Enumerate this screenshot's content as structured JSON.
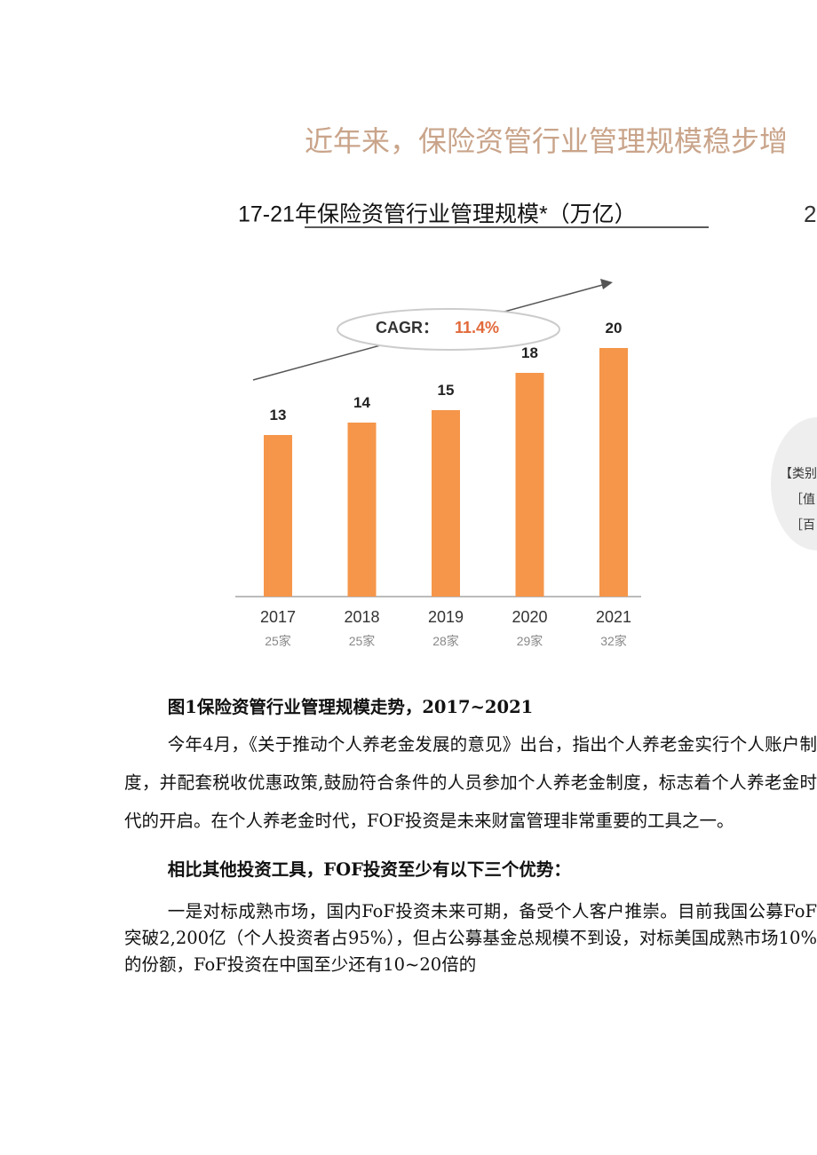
{
  "header": {
    "title": "近年来，保险资管行业管理规模稳步增"
  },
  "chart_data": {
    "type": "bar",
    "title": "17-21年保险资管行业管理规模*（万亿）",
    "annotation": {
      "label": "CAGR：",
      "value": "11.4%"
    },
    "categories": [
      "2017",
      "2018",
      "2019",
      "2020",
      "2021"
    ],
    "values": [
      13,
      14,
      15,
      18,
      20
    ],
    "sublabels": [
      "25家",
      "25家",
      "28家",
      "29家",
      "32家"
    ],
    "color": "#f5964a"
  },
  "side": {
    "title": "2",
    "labels": [
      "【类别",
      "［值",
      "［百"
    ]
  },
  "document": {
    "caption": "图1保险资管行业管理规模走势，2017~2021",
    "paragraphs": [
      "今年4月，《关于推动个人养老金发展的意见》出台，指出个人养老金实行个人账户制度，并配套税收优惠政策,鼓励符合条件的人员参加个人养老金制度，标志着个人养老金时代的开启。在个人养老金时代，FOF投资是未来财富管理非常重要的工具之一。",
      "相比其他投资工具，FOF投资至少有以下三个优势：",
      "一是对标成熟市场，国内FoF投资未来可期，备受个人客户推崇。目前我国公募FoF突破2,200亿（个人投资者占95%），但占公募基金总规模不到设，对标美国成熟市场10%的份额，FoF投资在中国至少还有10~20倍的"
    ]
  }
}
